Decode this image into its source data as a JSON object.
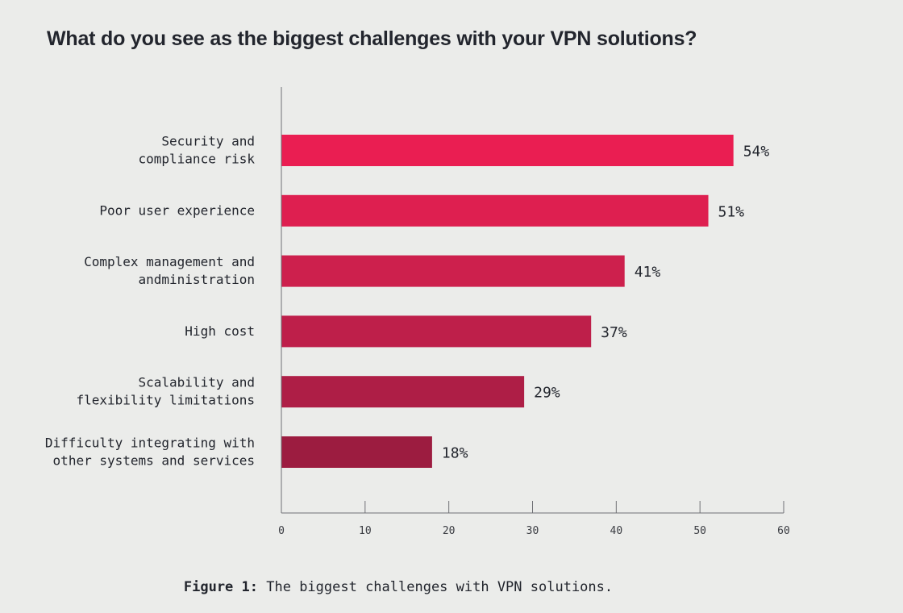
{
  "title": "What do you see as the biggest challenges with your VPN solutions?",
  "caption": {
    "label": "Figure 1:",
    "text": "The biggest challenges with VPN solutions."
  },
  "chart_data": {
    "type": "bar",
    "orientation": "horizontal",
    "title": "What do you see as the biggest challenges with your VPN solutions?",
    "xlabel": "",
    "ylabel": "",
    "categories": [
      [
        "Security and",
        "compliance risk"
      ],
      [
        "Poor user experience"
      ],
      [
        "Complex management and",
        "andministration"
      ],
      [
        "High cost"
      ],
      [
        "Scalability and",
        "flexibility limitations"
      ],
      [
        "Difficulty integrating with",
        "other systems and services"
      ]
    ],
    "values": [
      54,
      51,
      41,
      37,
      29,
      18
    ],
    "value_labels": [
      "54%",
      "51%",
      "41%",
      "37%",
      "29%",
      "18%"
    ],
    "bar_colors": [
      "#ea1e52",
      "#de1f50",
      "#cd204d",
      "#be1f4a",
      "#ae1e46",
      "#9c1c40"
    ],
    "xlim": [
      0,
      60
    ],
    "xticks": [
      0,
      10,
      20,
      30,
      40,
      50,
      60
    ],
    "grid": false,
    "legend": "none"
  }
}
